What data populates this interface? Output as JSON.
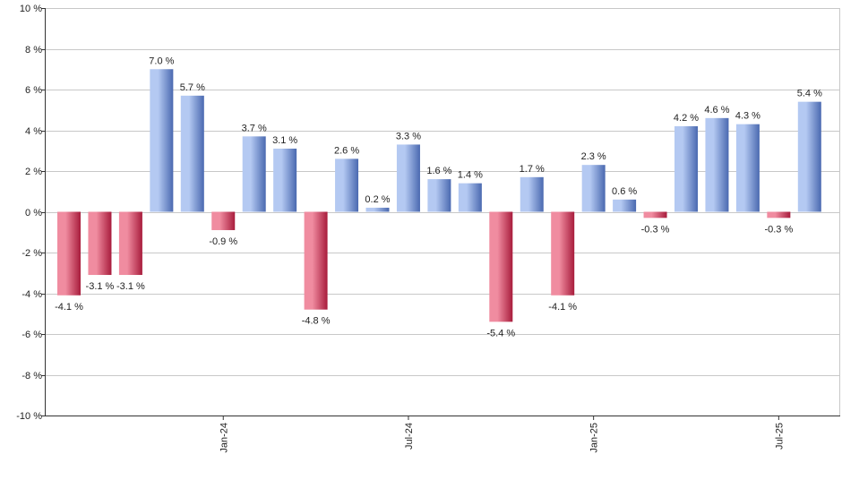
{
  "chart_data": {
    "type": "bar",
    "title": "",
    "xlabel": "",
    "ylabel": "",
    "ylim": [
      -10,
      10
    ],
    "y_ticks": [
      -10,
      -8,
      -6,
      -4,
      -2,
      0,
      2,
      4,
      6,
      8,
      10
    ],
    "y_tick_suffix": " %",
    "grid": true,
    "values": [
      -4.1,
      -3.1,
      -3.1,
      7.0,
      5.7,
      -0.9,
      3.7,
      3.1,
      -4.8,
      2.6,
      0.2,
      3.3,
      1.6,
      1.4,
      -5.4,
      1.7,
      -4.1,
      2.3,
      0.6,
      -0.3,
      4.2,
      4.6,
      4.3,
      -0.3,
      5.4
    ],
    "value_labels": [
      "-4.1 %",
      "-3.1 %",
      "-3.1 %",
      "7.0 %",
      "5.7 %",
      "-0.9 %",
      "3.7 %",
      "3.1 %",
      "-4.8 %",
      "2.6 %",
      "0.2 %",
      "3.3 %",
      "1.6 %",
      "1.4 %",
      "-5.4 %",
      "1.7 %",
      "-4.1 %",
      "2.3 %",
      "0.6 %",
      "-0.3 %",
      "4.2 %",
      "4.6 %",
      "4.3 %",
      "-0.3 %",
      "5.4 %"
    ],
    "x_ticks": [
      {
        "label": "Jan-24",
        "after_bar": 5
      },
      {
        "label": "Jul-24",
        "after_bar": 11
      },
      {
        "label": "Jan-25",
        "after_bar": 17
      },
      {
        "label": "Jul-25",
        "after_bar": 23
      }
    ],
    "colors": {
      "positive_light": "#b4c9f2",
      "positive_dark": "#4a69b0",
      "negative_light": "#f08ca0",
      "negative_dark": "#a81c3c",
      "grid": "#c8c8c8",
      "axis": "#333333"
    }
  }
}
